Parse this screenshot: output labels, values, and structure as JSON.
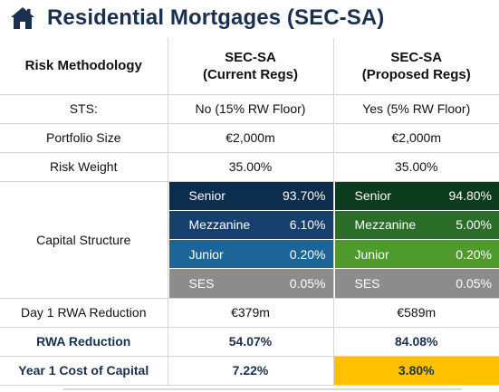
{
  "title": "Residential Mortgages (SEC-SA)",
  "header": {
    "col0": "Risk Methodology",
    "col1_line1": "SEC-SA",
    "col1_line2": "(Current Regs)",
    "col2_line1": "SEC-SA",
    "col2_line2": "(Proposed Regs)"
  },
  "rows": [
    {
      "label": "STS:",
      "current": "No (15% RW Floor)",
      "proposed": "Yes (5% RW Floor)"
    },
    {
      "label": "Portfolio Size",
      "current": "€2,000m",
      "proposed": "€2,000m"
    },
    {
      "label": "Risk Weight",
      "current": "35.00%",
      "proposed": "35.00%"
    }
  ],
  "capital_structure": {
    "label": "Capital Structure",
    "current": [
      {
        "name": "Senior",
        "value": "93.70%",
        "color": "#0d2d4d"
      },
      {
        "name": "Mezzanine",
        "value": "6.10%",
        "color": "#17406e"
      },
      {
        "name": "Junior",
        "value": "0.20%",
        "color": "#1c6596"
      },
      {
        "name": "SES",
        "value": "0.05%",
        "color": "#8c8c8c"
      }
    ],
    "proposed": [
      {
        "name": "Senior",
        "value": "94.80%",
        "color": "#0c3b1d"
      },
      {
        "name": "Mezzanine",
        "value": "5.00%",
        "color": "#2a6e2a"
      },
      {
        "name": "Junior",
        "value": "0.20%",
        "color": "#4e9a2c"
      },
      {
        "name": "SES",
        "value": "0.05%",
        "color": "#8c8c8c"
      }
    ]
  },
  "rows_after": [
    {
      "label": "Day 1 RWA Reduction",
      "current": "€379m",
      "proposed": "€589m",
      "bold": false
    },
    {
      "label": "RWA Reduction",
      "current": "54.07%",
      "proposed": "84.08%",
      "bold": true
    },
    {
      "label": "Year 1 Cost of Capital",
      "current": "7.22%",
      "proposed": "3.80%",
      "bold": true
    }
  ],
  "colors": {
    "title": "#1b2f4e",
    "highlight": "#ffc000"
  }
}
